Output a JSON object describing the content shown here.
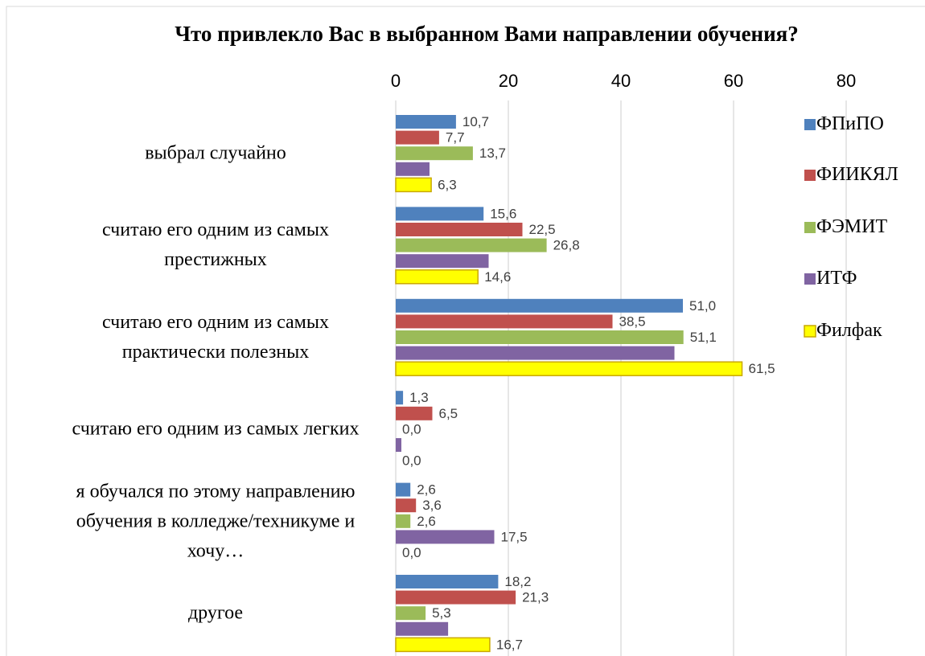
{
  "chart_data": {
    "type": "bar",
    "orientation": "horizontal",
    "title": "Что привлекло Вас в выбранном Вами направлении обучения?",
    "categories": [
      "выбрал случайно",
      "считаю его одним из самых престижных",
      "считаю его одним из самых практически полезных",
      "считаю его одним из самых легких",
      "я обучался по этому направлению обучения в колледже/техникуме и хочу…",
      "другое"
    ],
    "series": [
      {
        "name": "ФПиПО",
        "color": "#4f81bd",
        "values": [
          10.7,
          15.6,
          51.0,
          1.3,
          2.6,
          18.2
        ],
        "value_labels": [
          "10,7",
          "15,6",
          "51,0",
          "1,3",
          "2,6",
          "18,2"
        ]
      },
      {
        "name": "ФИИКЯЛ",
        "color": "#c0504d",
        "values": [
          7.7,
          22.5,
          38.5,
          6.5,
          3.6,
          21.3
        ],
        "value_labels": [
          "7,7",
          "22,5",
          "38,5",
          "6,5",
          "3,6",
          "21,3"
        ]
      },
      {
        "name": "ФЭМИТ",
        "color": "#9bbb59",
        "values": [
          13.7,
          26.8,
          51.1,
          0.0,
          2.6,
          5.3
        ],
        "value_labels": [
          "13,7",
          "26,8",
          "51,1",
          "0,0",
          "2,6",
          "5,3"
        ]
      },
      {
        "name": "ИТФ",
        "color": "#8064a2",
        "values": [
          6.0,
          16.5,
          49.5,
          1.0,
          17.5,
          9.3
        ],
        "value_labels": [
          null,
          null,
          null,
          null,
          "17,5",
          null
        ]
      },
      {
        "name": "Филфак",
        "color": "#ffff00",
        "values": [
          6.3,
          14.6,
          61.5,
          0.0,
          0.0,
          16.7
        ],
        "value_labels": [
          "6,3",
          "14,6",
          "61,5",
          "0,0",
          "0,0",
          "16,7"
        ]
      }
    ],
    "xlim": [
      0,
      80
    ],
    "xticks": [
      0,
      20,
      40,
      60,
      80
    ],
    "grid": true,
    "legend": "right"
  }
}
